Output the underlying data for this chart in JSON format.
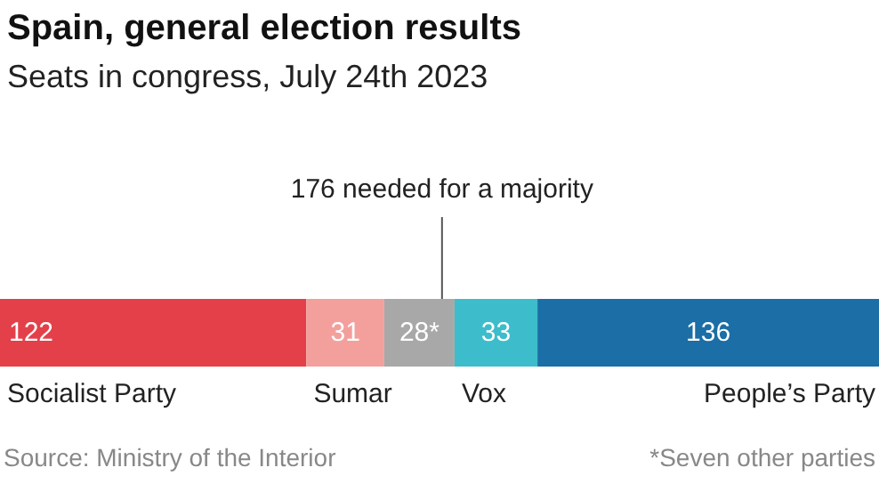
{
  "chart_data": {
    "type": "bar",
    "orientation": "horizontal",
    "stacked": true,
    "title": "Spain, general election results",
    "subtitle": "Seats in congress, July 24th 2023",
    "categories": [
      null
    ],
    "xlim": [
      0,
      350
    ],
    "tick_labels": false,
    "legend": false,
    "series": [
      {
        "name": "Socialist Party",
        "color": "#e3404a",
        "values": [
          122
        ],
        "value_labels": [
          "122"
        ]
      },
      {
        "name": "Sumar",
        "color": "#f3a09c",
        "values": [
          31
        ],
        "value_labels": [
          "31"
        ]
      },
      {
        "color": "#a8a8a8",
        "values": [
          28
        ],
        "value_labels": [
          "28*"
        ]
      },
      {
        "name": "Vox",
        "color": "#3dbdcb",
        "values": [
          33
        ],
        "value_labels": [
          "33"
        ]
      },
      {
        "name": "People’s Party",
        "color": "#1b6ea6",
        "values": [
          136
        ],
        "value_labels": [
          "136"
        ]
      }
    ],
    "ref_lines": [
      {
        "axis": "x",
        "value": 176,
        "label": "176 needed for a majority",
        "color": "#555555"
      }
    ],
    "annotations": [
      "Source: Ministry of the Interior",
      "*Seven other parties"
    ]
  }
}
